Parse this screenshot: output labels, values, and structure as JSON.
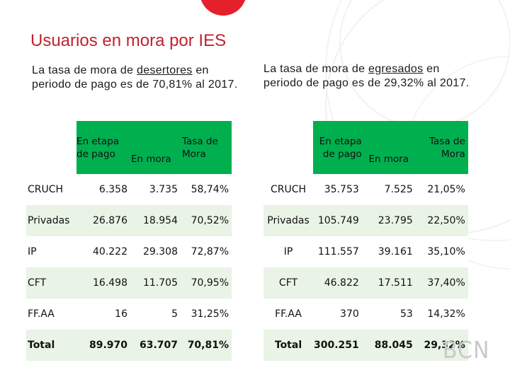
{
  "title": "Usuarios en mora por IES",
  "left": {
    "desc_pre": "La tasa de mora de ",
    "desc_em": "desertores",
    "desc_post": " en periodo de pago es de 70,81% al 2017.",
    "headers": {
      "etapa": "En etapa de pago",
      "mora": "En mora",
      "tasa": "Tasa de Mora"
    },
    "rows": [
      {
        "label": "CRUCH",
        "etapa": "6.358",
        "mora": "3.735",
        "tasa": "58,74%"
      },
      {
        "label": "Privadas",
        "etapa": "26.876",
        "mora": "18.954",
        "tasa": "70,52%"
      },
      {
        "label": "IP",
        "etapa": "40.222",
        "mora": "29.308",
        "tasa": "72,87%"
      },
      {
        "label": "CFT",
        "etapa": "16.498",
        "mora": "11.705",
        "tasa": "70,95%"
      },
      {
        "label": "FF.AA",
        "etapa": "16",
        "mora": "5",
        "tasa": "31,25%"
      },
      {
        "label": "Total",
        "etapa": "89.970",
        "mora": "63.707",
        "tasa": "70,81%"
      }
    ]
  },
  "right": {
    "desc_pre": "La tasa de mora de ",
    "desc_em": "egresados",
    "desc_post": " en periodo de pago es de 29,32% al 2017.",
    "headers": {
      "etapa": "En etapa de pago",
      "mora": "En mora",
      "tasa": "Tasa de Mora"
    },
    "rows": [
      {
        "label": "CRUCH",
        "etapa": "35.753",
        "mora": "7.525",
        "tasa": "21,05%"
      },
      {
        "label": "Privadas",
        "etapa": "105.749",
        "mora": "23.795",
        "tasa": "22,50%"
      },
      {
        "label": "IP",
        "etapa": "111.557",
        "mora": "39.161",
        "tasa": "35,10%"
      },
      {
        "label": "CFT",
        "etapa": "46.822",
        "mora": "17.511",
        "tasa": "37,40%"
      },
      {
        "label": "FF.AA",
        "etapa": "370",
        "mora": "53",
        "tasa": "14,32%"
      },
      {
        "label": "Total",
        "etapa": "300.251",
        "mora": "88.045",
        "tasa": "29,32%"
      }
    ]
  },
  "logo_text": "BCN",
  "colors": {
    "header_green": "#00b04f",
    "title_red": "#c0222d",
    "stripe": "#e9f3e6"
  }
}
